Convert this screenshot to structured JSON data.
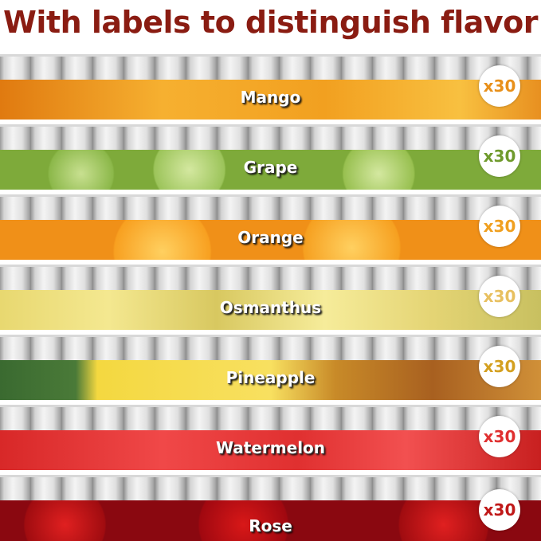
{
  "title": "With labels to distinguish flavor",
  "flavors": [
    {
      "name": "Mango",
      "count": "x30",
      "color": "#e8901a"
    },
    {
      "name": "Grape",
      "count": "x30",
      "color": "#6f9a2c"
    },
    {
      "name": "Orange",
      "count": "x30",
      "color": "#f0a020"
    },
    {
      "name": "Osmanthus",
      "count": "x30",
      "color": "#e8c060"
    },
    {
      "name": "Pineapple",
      "count": "x30",
      "color": "#d4a020"
    },
    {
      "name": "Watermelon",
      "count": "x30",
      "color": "#e03030"
    },
    {
      "name": "Rose",
      "count": "x30",
      "color": "#c01818"
    }
  ]
}
